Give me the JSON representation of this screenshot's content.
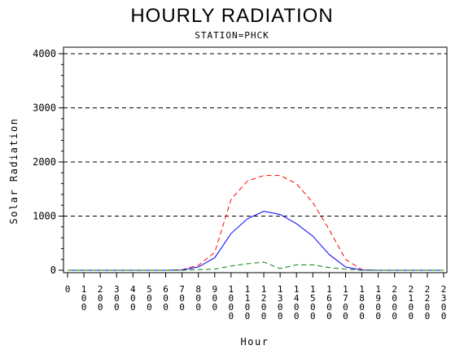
{
  "chart_data": {
    "type": "line",
    "title": "HOURLY RADIATION",
    "subtitle": "STATION=PHCK",
    "xlabel": "Hour",
    "ylabel": "Solar Radiation",
    "x_ticks": [
      "0",
      "100",
      "200",
      "300",
      "400",
      "500",
      "600",
      "700",
      "800",
      "900",
      "1000",
      "1100",
      "1200",
      "1300",
      "1400",
      "1500",
      "1600",
      "1700",
      "1800",
      "1900",
      "2000",
      "2100",
      "2200",
      "2300"
    ],
    "y_ticks": [
      "0",
      "1000",
      "2000",
      "3000",
      "4000"
    ],
    "xlim": [
      0,
      2300
    ],
    "ylim": [
      0,
      4000
    ],
    "grid": "horizontal dashed",
    "x": [
      0,
      100,
      200,
      300,
      400,
      500,
      600,
      700,
      800,
      900,
      1000,
      1100,
      1200,
      1300,
      1400,
      1500,
      1600,
      1700,
      1800,
      1900,
      2000,
      2100,
      2200,
      2300
    ],
    "series": [
      {
        "color": "#ff0000",
        "dash": "dashed",
        "values": [
          0,
          0,
          0,
          0,
          0,
          0,
          0,
          10,
          90,
          330,
          1310,
          1650,
          1750,
          1750,
          1600,
          1250,
          750,
          200,
          10,
          0,
          0,
          0,
          0,
          0
        ]
      },
      {
        "color": "#0000ff",
        "dash": "solid",
        "values": [
          0,
          0,
          0,
          0,
          0,
          0,
          0,
          5,
          60,
          230,
          680,
          950,
          1090,
          1030,
          860,
          630,
          290,
          60,
          5,
          0,
          0,
          0,
          0,
          0
        ]
      },
      {
        "color": "#008000",
        "dash": "dashed",
        "values": [
          0,
          0,
          0,
          0,
          0,
          0,
          0,
          0,
          10,
          20,
          80,
          120,
          150,
          30,
          100,
          100,
          50,
          20,
          0,
          0,
          0,
          0,
          0,
          0
        ]
      }
    ]
  }
}
